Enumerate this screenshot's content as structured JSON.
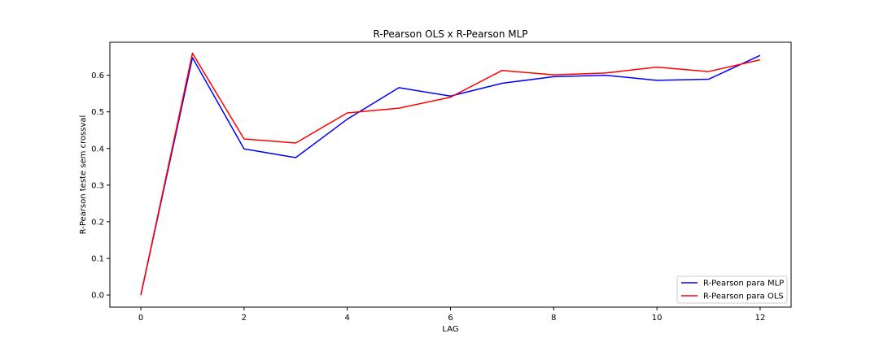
{
  "chart_data": {
    "type": "line",
    "title": "R-Pearson OLS x R-Pearson MLP",
    "xlabel": "LAG",
    "ylabel": "R-Pearson teste sem crossval",
    "x": [
      0,
      1,
      2,
      3,
      4,
      5,
      6,
      7,
      8,
      9,
      10,
      11,
      12
    ],
    "xlim": [
      -0.6,
      12.6
    ],
    "ylim": [
      -0.033,
      0.69
    ],
    "xticks": [
      0,
      2,
      4,
      6,
      8,
      10,
      12
    ],
    "yticks": [
      0.0,
      0.1,
      0.2,
      0.3,
      0.4,
      0.5,
      0.6
    ],
    "ytick_labels": [
      "0.0",
      "0.1",
      "0.2",
      "0.3",
      "0.4",
      "0.5",
      "0.6"
    ],
    "grid": false,
    "legend_position": "lower-right",
    "series": [
      {
        "name": "R-Pearson para MLP",
        "color": "#0000ff",
        "values": [
          0.0,
          0.648,
          0.399,
          0.375,
          0.48,
          0.566,
          0.543,
          0.578,
          0.596,
          0.6,
          0.586,
          0.589,
          0.654
        ]
      },
      {
        "name": "R-Pearson para OLS",
        "color": "#ff0000",
        "values": [
          0.0,
          0.66,
          0.426,
          0.415,
          0.497,
          0.51,
          0.54,
          0.613,
          0.601,
          0.606,
          0.622,
          0.61,
          0.642
        ]
      }
    ]
  }
}
